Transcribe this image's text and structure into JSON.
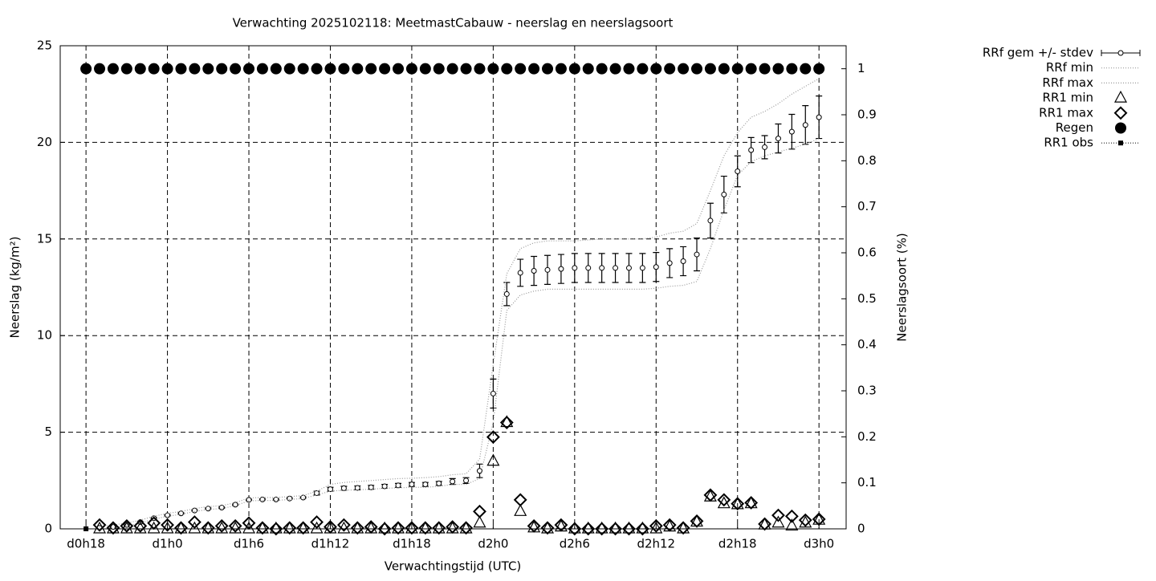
{
  "chart_data": {
    "type": "line",
    "title": "Verwachting 2025102118: MeetmastCabauw - neerslag en neerslagsoort",
    "xlabel": "Verwachtingstijd (UTC)",
    "ylabel": "Neerslag (kg/m²)",
    "y2label": "Neerslagsoort (%)",
    "x": [
      0,
      1,
      2,
      3,
      4,
      5,
      6,
      7,
      8,
      9,
      10,
      11,
      12,
      13,
      14,
      15,
      16,
      17,
      18,
      19,
      20,
      21,
      22,
      23,
      24,
      25,
      26,
      27,
      28,
      29,
      30,
      31,
      32,
      33,
      34,
      35,
      36,
      37,
      38,
      39,
      40,
      41,
      42,
      43,
      44,
      45,
      46,
      47,
      48,
      49,
      50,
      51,
      52,
      53,
      54
    ],
    "xlim": [
      -1.9,
      56
    ],
    "xticks": [
      {
        "value": 0,
        "label": "d0h18"
      },
      {
        "value": 6,
        "label": "d1h0"
      },
      {
        "value": 12,
        "label": "d1h6"
      },
      {
        "value": 18,
        "label": "d1h12"
      },
      {
        "value": 24,
        "label": "d1h18"
      },
      {
        "value": 30,
        "label": "d2h0"
      },
      {
        "value": 36,
        "label": "d2h6"
      },
      {
        "value": 42,
        "label": "d2h12"
      },
      {
        "value": 48,
        "label": "d2h18"
      },
      {
        "value": 54,
        "label": "d3h0"
      }
    ],
    "ylim": [
      0,
      25
    ],
    "yticks": [
      0,
      5,
      10,
      15,
      20,
      25
    ],
    "y2lim": [
      0,
      1.05
    ],
    "y2ticks": [
      0,
      0.1,
      0.2,
      0.3,
      0.4,
      0.5,
      0.6,
      0.7,
      0.8,
      0.9,
      1
    ],
    "grid": true,
    "legend": "outside-right",
    "series": [
      {
        "name": "RRf gem +/- stdev",
        "style": "errorbar",
        "color": "#000000",
        "values": [
          null,
          0.05,
          0.1,
          0.2,
          0.35,
          0.55,
          0.7,
          0.8,
          0.95,
          1.05,
          1.1,
          1.25,
          1.5,
          1.52,
          1.52,
          1.57,
          1.62,
          1.85,
          2.05,
          2.1,
          2.12,
          2.15,
          2.2,
          2.25,
          2.3,
          2.3,
          2.35,
          2.45,
          2.5,
          3.0,
          7.0,
          12.15,
          13.25,
          13.35,
          13.4,
          13.45,
          13.5,
          13.5,
          13.5,
          13.5,
          13.5,
          13.5,
          13.55,
          13.75,
          13.85,
          14.2,
          15.95,
          17.3,
          18.5,
          19.6,
          19.75,
          20.2,
          20.55,
          20.9,
          21.3
        ],
        "errors": [
          null,
          0.03,
          0.03,
          0.03,
          0.03,
          0.03,
          0.03,
          0.03,
          0.03,
          0.03,
          0.03,
          0.03,
          0.03,
          0.03,
          0.03,
          0.03,
          0.03,
          0.1,
          0.1,
          0.1,
          0.1,
          0.1,
          0.1,
          0.1,
          0.1,
          0.1,
          0.1,
          0.15,
          0.15,
          0.35,
          0.75,
          0.6,
          0.7,
          0.75,
          0.75,
          0.75,
          0.75,
          0.75,
          0.75,
          0.75,
          0.75,
          0.75,
          0.75,
          0.75,
          0.75,
          0.85,
          0.9,
          0.95,
          0.8,
          0.65,
          0.6,
          0.75,
          0.9,
          1.0,
          1.1
        ]
      },
      {
        "name": "RRf min",
        "style": "dotted",
        "color": "#999999",
        "values": [
          null,
          0,
          0.05,
          0.15,
          0.3,
          0.5,
          0.65,
          0.75,
          0.9,
          1,
          1.05,
          1.2,
          1.45,
          1.47,
          1.47,
          1.52,
          1.57,
          1.75,
          1.95,
          2,
          2.02,
          2.05,
          2.1,
          2.12,
          2.15,
          2.15,
          2.2,
          2.3,
          2.3,
          2.6,
          5.5,
          11.3,
          12.1,
          12.3,
          12.4,
          12.4,
          12.4,
          12.4,
          12.4,
          12.4,
          12.4,
          12.4,
          12.45,
          12.55,
          12.6,
          12.8,
          14.5,
          16.5,
          18.3,
          19,
          19.3,
          19.5,
          19.7,
          19.9,
          20.2
        ]
      },
      {
        "name": "RRf max",
        "style": "dotted",
        "color": "#999999",
        "values": [
          null,
          0.1,
          0.2,
          0.3,
          0.45,
          0.65,
          0.8,
          0.9,
          1.05,
          1.15,
          1.2,
          1.35,
          1.6,
          1.62,
          1.62,
          1.67,
          1.72,
          1.95,
          2.3,
          2.4,
          2.45,
          2.5,
          2.55,
          2.6,
          2.62,
          2.65,
          2.7,
          2.8,
          2.85,
          3.6,
          8.5,
          13.2,
          14.5,
          14.8,
          14.9,
          14.9,
          14.9,
          14.95,
          15,
          15,
          15,
          15,
          15.1,
          15.3,
          15.4,
          15.8,
          17.5,
          19.3,
          20.5,
          21.3,
          21.6,
          22,
          22.5,
          22.9,
          23.3
        ]
      },
      {
        "name": "RR1 min",
        "style": "triangle",
        "color": "#000000",
        "values": [
          null,
          0,
          0,
          0,
          0,
          0,
          0,
          0,
          0,
          0,
          0,
          0,
          0,
          0,
          0,
          0,
          0,
          0,
          0,
          0,
          0,
          0,
          0,
          0,
          0,
          0,
          0,
          0,
          0,
          0.3,
          3.5,
          5.5,
          0.9,
          0.05,
          0,
          0.1,
          0,
          0,
          0,
          0,
          0,
          0,
          0,
          0.1,
          0,
          0.35,
          1.65,
          1.3,
          1.25,
          1.3,
          0.2,
          0.3,
          0.15,
          0.3,
          0.45
        ]
      },
      {
        "name": "RR1 max",
        "style": "diamond",
        "color": "#000000",
        "values": [
          null,
          0.2,
          0.05,
          0.15,
          0.15,
          0.3,
          0.2,
          0.05,
          0.35,
          0.05,
          0.15,
          0.15,
          0.3,
          0.05,
          0,
          0.05,
          0.05,
          0.35,
          0.1,
          0.2,
          0.05,
          0.1,
          0,
          0.05,
          0.05,
          0.05,
          0.05,
          0.1,
          0.05,
          0.9,
          4.75,
          5.5,
          1.5,
          0.15,
          0.05,
          0.2,
          0,
          0,
          0,
          0,
          0,
          0,
          0.15,
          0.2,
          0.05,
          0.4,
          1.75,
          1.5,
          1.3,
          1.35,
          0.25,
          0.7,
          0.65,
          0.45,
          0.5
        ]
      },
      {
        "name": "Regen",
        "style": "circle",
        "color": "#000000",
        "axis": "y2",
        "values": [
          1,
          1,
          1,
          1,
          1,
          1,
          1,
          1,
          1,
          1,
          1,
          1,
          1,
          1,
          1,
          1,
          1,
          1,
          1,
          1,
          1,
          1,
          1,
          1,
          1,
          1,
          1,
          1,
          1,
          1,
          1,
          1,
          1,
          1,
          1,
          1,
          1,
          1,
          1,
          1,
          1,
          1,
          1,
          1,
          1,
          1,
          1,
          1,
          1,
          1,
          1,
          1,
          1,
          1,
          1
        ]
      },
      {
        "name": "RR1 obs",
        "style": "square",
        "color": "#000000",
        "values": [
          0,
          null,
          null,
          null,
          null,
          null,
          null,
          null,
          null,
          null,
          null,
          null,
          null,
          null,
          null,
          null,
          null,
          null,
          null,
          null,
          null,
          null,
          null,
          null,
          null,
          null,
          null,
          null,
          null,
          null,
          null,
          null,
          null,
          null,
          null,
          null,
          null,
          null,
          null,
          null,
          null,
          null,
          null,
          null,
          null,
          null,
          null,
          null,
          null,
          null,
          null,
          null,
          null,
          null,
          null
        ]
      }
    ]
  }
}
